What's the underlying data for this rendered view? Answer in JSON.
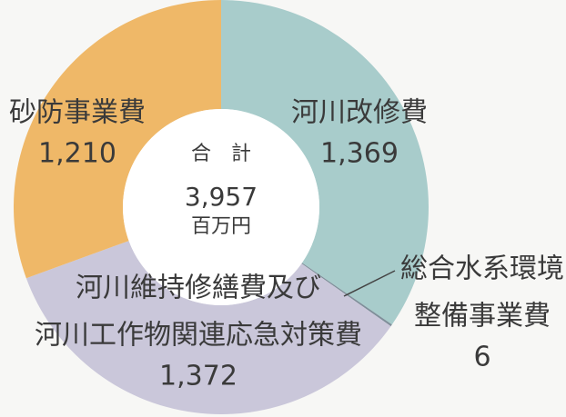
{
  "chart_data": {
    "type": "donut",
    "categories": [
      [
        "河川改修費"
      ],
      [
        "総合水系環境",
        "整備事業費"
      ],
      [
        "河川維持修繕費及び",
        "河川工作物関連応急対策費"
      ],
      [
        "砂防事業費"
      ]
    ],
    "values": [
      1369,
      6,
      1372,
      1210
    ],
    "value_labels": [
      "1,369",
      "6",
      "1,372",
      "1,210"
    ],
    "colors": [
      "#a8cccb",
      "#7f8f9a",
      "#cac7da",
      "#efb868"
    ],
    "center": {
      "title": "合　計",
      "total": "3,957",
      "unit": "百万円"
    }
  }
}
